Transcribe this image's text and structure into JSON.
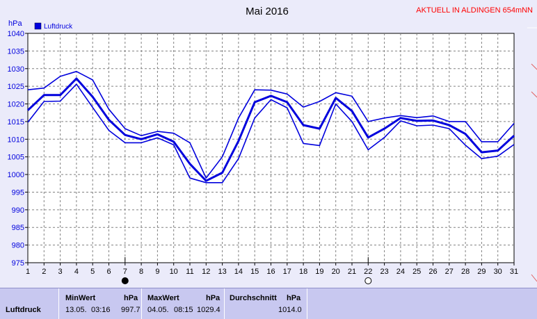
{
  "header": {
    "title": "Mai 2016",
    "station": "AKTUELL IN ALDINGEN 654mNN",
    "colors": {
      "station": "#ff0000",
      "series": "#0000dd",
      "grid": "#808080"
    }
  },
  "chart_data": {
    "type": "line",
    "ylabel": "hPa",
    "ylim": [
      975,
      1040
    ],
    "yticks": [
      975,
      980,
      985,
      990,
      995,
      1000,
      1005,
      1010,
      1015,
      1020,
      1025,
      1030,
      1035,
      1040
    ],
    "x": [
      1,
      2,
      3,
      4,
      5,
      6,
      7,
      8,
      9,
      10,
      11,
      12,
      13,
      14,
      15,
      16,
      17,
      18,
      19,
      20,
      21,
      22,
      23,
      24,
      25,
      26,
      27,
      28,
      29,
      30,
      31
    ],
    "xlim": [
      1,
      31
    ],
    "grid": true,
    "legend": {
      "position": "top-left",
      "entries": [
        "Luftdruck"
      ]
    },
    "series": [
      {
        "name": "Luftdruck",
        "values": [
          1018.2,
          1022.5,
          1022.5,
          1027.2,
          1022.0,
          1015.5,
          1011.2,
          1010.0,
          1011.4,
          1009.3,
          1003.0,
          998.2,
          1000.5,
          1009.5,
          1020.5,
          1022.3,
          1020.5,
          1014.0,
          1013.0,
          1021.7,
          1018.0,
          1010.5,
          1013.0,
          1016.0,
          1015.2,
          1015.3,
          1014.0,
          1011.5,
          1006.3,
          1006.8,
          1011.0
        ]
      },
      {
        "role": "max",
        "values": [
          1024.0,
          1024.5,
          1027.8,
          1029.2,
          1026.8,
          1018.5,
          1013.0,
          1011.0,
          1012.2,
          1011.7,
          1009.0,
          999.0,
          1005.0,
          1016.0,
          1024.0,
          1023.9,
          1022.8,
          1019.1,
          1020.7,
          1023.2,
          1022.2,
          1015.0,
          1016.0,
          1016.7,
          1016.1,
          1016.6,
          1015.0,
          1015.0,
          1009.3,
          1009.3,
          1014.5
        ]
      },
      {
        "role": "min",
        "values": [
          1014.8,
          1020.7,
          1020.8,
          1025.6,
          1019.0,
          1012.5,
          1009.0,
          1009.0,
          1010.4,
          1008.4,
          999.0,
          997.7,
          997.7,
          1004.5,
          1016.0,
          1021.2,
          1018.9,
          1008.8,
          1008.2,
          1020.0,
          1015.0,
          1007.0,
          1010.5,
          1015.2,
          1013.8,
          1014.0,
          1013.0,
          1008.3,
          1004.5,
          1005.2,
          1008.5
        ]
      }
    ],
    "moon_phases": [
      {
        "day": 7,
        "phase": "new-moon"
      },
      {
        "day": 22,
        "phase": "full-moon"
      }
    ]
  },
  "stats": {
    "row_label": "Luftdruck",
    "min": {
      "header": "MinWert",
      "unit": "hPa",
      "date": "13.05.",
      "time": "03:16",
      "value": "997.7"
    },
    "max": {
      "header": "MaxWert",
      "unit": "hPa",
      "date": "04.05.",
      "time": "08:15",
      "value": "1029.4"
    },
    "avg": {
      "header": "Durchschnitt",
      "unit": "hPa",
      "value": "1014.0"
    }
  }
}
